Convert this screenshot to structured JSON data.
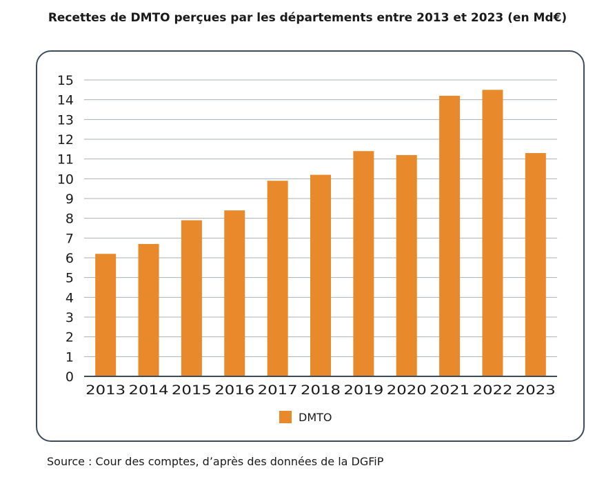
{
  "title": "Recettes de DMTO perçues par les départements  entre 2013 et 2023 (en Md€)",
  "source": "Source : Cour des comptes, d’après des données de la DGFiP",
  "colors": {
    "bar": "#e8892b",
    "grid": "#a8b0bc",
    "axis": "#3d4a5c",
    "frame": "#3d4a5c"
  },
  "chart_data": {
    "type": "bar",
    "categories": [
      "2013",
      "2014",
      "2015",
      "2016",
      "2017",
      "2018",
      "2019",
      "2020",
      "2021",
      "2022",
      "2023"
    ],
    "series": [
      {
        "name": "DMTO",
        "values": [
          6.2,
          6.7,
          7.9,
          8.4,
          9.9,
          10.2,
          11.4,
          11.2,
          14.2,
          14.5,
          11.3
        ]
      }
    ],
    "ylim": [
      0,
      15
    ],
    "yticks": [
      "0",
      "1",
      "2",
      "3",
      "4",
      "5",
      "6",
      "7",
      "8",
      "9",
      "10",
      "11",
      "12",
      "13",
      "14",
      "15"
    ],
    "grid": true,
    "legend": "bottom-center"
  }
}
